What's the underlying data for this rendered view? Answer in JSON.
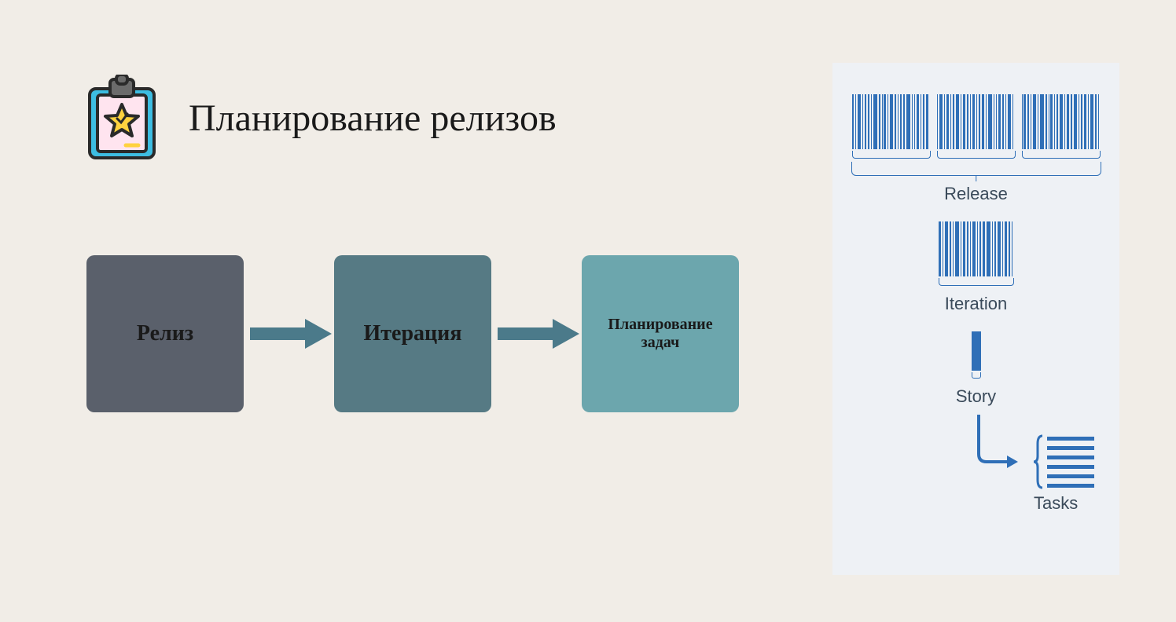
{
  "title": "Планирование релизов",
  "colors": {
    "background": "#f1ede7",
    "arrow": "#4b7a8a",
    "panel_bg": "#eef1f5",
    "barcode": "#2f6fb7",
    "panel_text": "#3a4a5a",
    "icon_board": "#3dbde2",
    "icon_paper": "#ffe4ef",
    "icon_clip": "#4a4a4a",
    "icon_star_fill": "#ffd23f",
    "icon_star_stroke": "#2a2a2a"
  },
  "flow": {
    "boxes": [
      {
        "label": "Релиз",
        "bg": "#5a606b",
        "font_size": 28
      },
      {
        "label": "Итерация",
        "bg": "#567a84",
        "font_size": 28
      },
      {
        "label": "Планирование задач",
        "bg": "#6ca6ad",
        "font_size": 20
      }
    ],
    "box_size": 200,
    "box_radius": 10,
    "arrow_color": "#4b7a8a"
  },
  "panel": {
    "release_label": "Release",
    "iteration_label": "Iteration",
    "story_label": "Story",
    "tasks_label": "Tasks",
    "label_fontsize": 22,
    "release_barcodes": [
      [
        3,
        1,
        4,
        1,
        2,
        3,
        1,
        5,
        2,
        1,
        3,
        1,
        4,
        2,
        1,
        3,
        2,
        5,
        1,
        2,
        3,
        1,
        2,
        4
      ],
      [
        2,
        4,
        1,
        3,
        1,
        2,
        5,
        1,
        3,
        2,
        1,
        4,
        1,
        2,
        3,
        1,
        5,
        2,
        1,
        3,
        2,
        1,
        4,
        2
      ],
      [
        1,
        3,
        2,
        1,
        4,
        1,
        5,
        2,
        1,
        3,
        1,
        2,
        4,
        1,
        3,
        2,
        5,
        1,
        2,
        3,
        1,
        4,
        2,
        1
      ]
    ],
    "iteration_barcode": [
      3,
      1,
      4,
      2,
      1,
      5,
      1,
      3,
      2,
      1,
      4,
      1,
      2,
      3,
      5,
      1,
      2,
      4,
      1,
      3,
      2,
      1
    ],
    "release_barcode_width": 100,
    "iteration_barcode_width": 96,
    "task_line_count": 6,
    "big_bracket_width": 318
  }
}
